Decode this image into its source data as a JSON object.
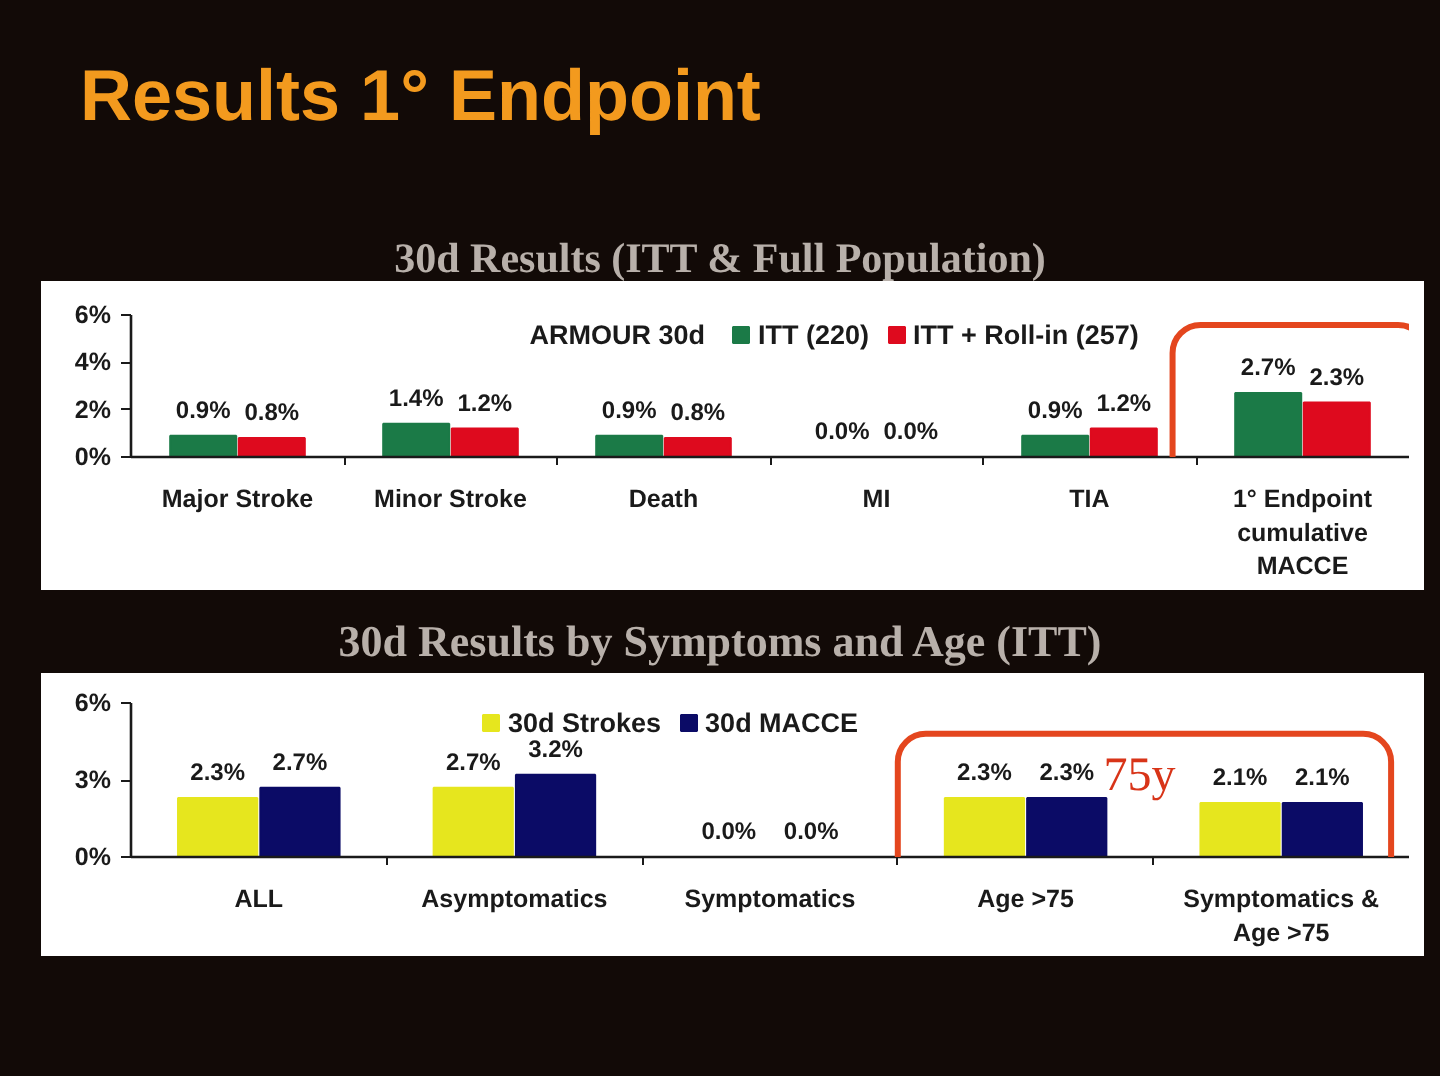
{
  "chart_data": [
    {
      "type": "bar",
      "title": "Results 1° Endpoint",
      "subtitle": "30d Results (ITT & Full Population)",
      "categories": [
        "Major Stroke",
        "Minor Stroke",
        "Death",
        "MI",
        "TIA",
        "1° Endpoint cumulative MACCE"
      ],
      "series": [
        {
          "name": "ITT (220)",
          "color": "#1b7a47",
          "values": [
            0.9,
            1.4,
            0.9,
            0.0,
            0.9,
            2.7
          ],
          "value_labels": [
            "0.9%",
            "1.4%",
            "0.9%",
            "0.0%",
            "0.9%",
            "2.7%"
          ]
        },
        {
          "name": "ITT + Roll-in (257)",
          "color": "#de0a1e",
          "values": [
            0.8,
            1.2,
            0.8,
            0.0,
            1.2,
            2.3
          ],
          "value_labels": [
            "0.8%",
            "1.2%",
            "0.8%",
            "0.0%",
            "1.2%",
            "2.3%"
          ]
        }
      ],
      "ylim": [
        0,
        6
      ],
      "yticks": [
        {
          "value": 0,
          "label": "0%"
        },
        {
          "value": 2,
          "label": "2%"
        },
        {
          "value": 4,
          "label": "4%"
        },
        {
          "value": 6,
          "label": "6%"
        }
      ],
      "legend": "top",
      "legend_title": "ARMOUR 30d"
    },
    {
      "type": "bar",
      "title": "30d Results by Symptoms and Age (ITT)",
      "categories": [
        "ALL",
        "Asymptomatics",
        "Symptomatics",
        "Age >75",
        "Symptomatics & Age >75"
      ],
      "series": [
        {
          "name": "30d Strokes",
          "color": "#e6e61e",
          "values": [
            2.3,
            2.7,
            0.0,
            2.3,
            2.1
          ],
          "value_labels": [
            "2.3%",
            "2.7%",
            "0.0%",
            "2.3%",
            "2.1%"
          ]
        },
        {
          "name": "30d MACCE",
          "color": "#0b0b66",
          "values": [
            2.7,
            3.2,
            0.0,
            2.3,
            2.1
          ],
          "value_labels": [
            "2.7%",
            "3.2%",
            "0.0%",
            "2.3%",
            "2.1%"
          ]
        }
      ],
      "ylim": [
        0,
        6
      ],
      "yticks": [
        {
          "value": 0,
          "label": "0%"
        },
        {
          "value": 3,
          "label": "3%"
        },
        {
          "value": 6,
          "label": "6%"
        }
      ],
      "legend": "top",
      "annotations": [
        {
          "text": "75y",
          "x": "Age >75",
          "y": 2.3
        }
      ]
    }
  ]
}
